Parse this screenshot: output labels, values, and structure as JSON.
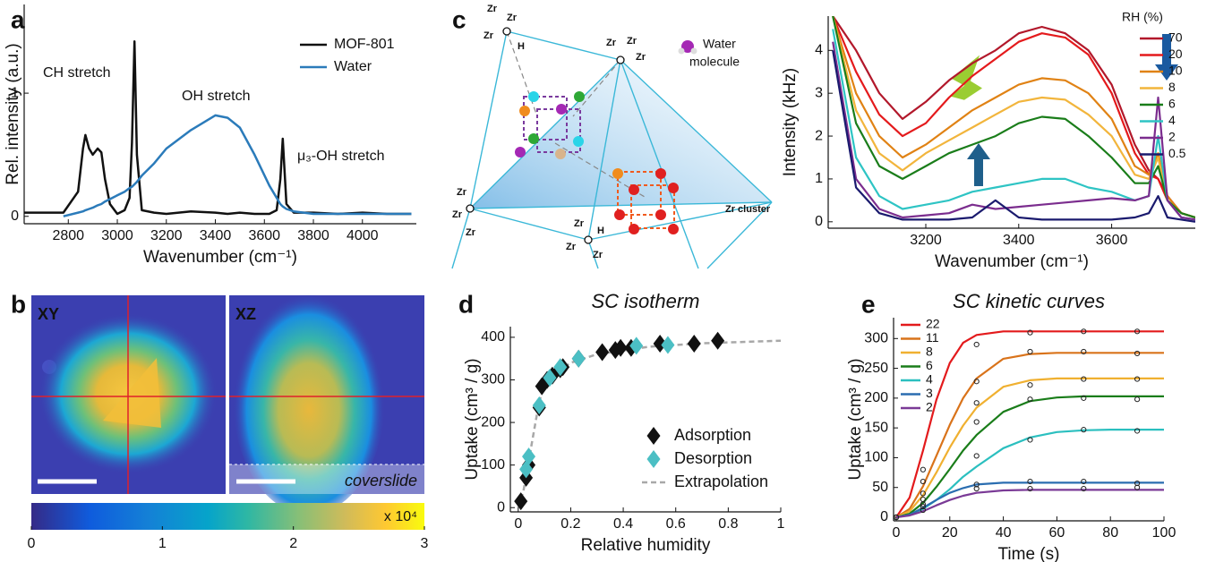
{
  "panel_labels": [
    "a",
    "b",
    "c",
    "d",
    "e"
  ],
  "diagram": {
    "zr_labels": [
      "Zr",
      "Zr",
      "Zr",
      "H",
      "Zr",
      "Zr",
      "Zr",
      "Zr",
      "Zr",
      "Zr",
      "Zr",
      "Zr",
      "Zr",
      "H"
    ],
    "water_label": [
      "Water",
      "molecule"
    ],
    "cluster_label": "Zr cluster"
  },
  "chart_data": [
    {
      "type": "line",
      "x": [
        2620,
        2700,
        2780,
        2840,
        2860,
        2870,
        2885,
        2900,
        2920,
        2935,
        2950,
        2970,
        3000,
        3030,
        3050,
        3060,
        3070,
        3080,
        3100,
        3150,
        3200,
        3300,
        3400,
        3450,
        3500,
        3560,
        3620,
        3650,
        3665,
        3675,
        3690,
        3720,
        3800,
        3900,
        4000,
        4100,
        4200
      ],
      "series": [
        {
          "name": "MOF-801",
          "color": "#111111",
          "values": [
            0.03,
            0.03,
            0.03,
            0.2,
            0.55,
            0.66,
            0.55,
            0.5,
            0.55,
            0.52,
            0.3,
            0.1,
            0.02,
            0.05,
            0.15,
            0.6,
            1.42,
            0.5,
            0.05,
            0.03,
            0.02,
            0.04,
            0.03,
            0.02,
            0.03,
            0.02,
            0.02,
            0.05,
            0.3,
            0.63,
            0.1,
            0.03,
            0.03,
            0.02,
            0.03,
            0.02,
            0.02
          ]
        },
        {
          "name": "Water",
          "color": "#2b7bba",
          "values": [
            null,
            null,
            0.0,
            0.03,
            0.04,
            0.05,
            0.06,
            0.07,
            0.09,
            0.1,
            0.12,
            0.14,
            0.17,
            0.2,
            0.23,
            0.24,
            0.26,
            0.28,
            0.33,
            0.43,
            0.55,
            0.7,
            0.82,
            0.8,
            0.72,
            0.5,
            0.25,
            0.15,
            0.1,
            0.08,
            0.06,
            0.04,
            0.02,
            0.02,
            0.02,
            0.02,
            0.02
          ]
        }
      ],
      "xlim": [
        2620,
        4220
      ],
      "ylim": [
        -0.06,
        1.72
      ],
      "xticks": [
        2800,
        3000,
        3200,
        3400,
        3600,
        3800,
        4000
      ],
      "yticks": [
        0,
        1
      ],
      "xlabel": "Wavenumber (cm⁻¹)",
      "ylabel": "Rel. intensity (a.u.)",
      "annotations": [
        "CH stretch",
        "OH stretch",
        "μ₃-OH stretch"
      ],
      "legend": "upper right"
    },
    {
      "type": "heatmap",
      "panels": [
        "XY",
        "XZ"
      ],
      "annotation": "coverslide",
      "colorbar_label": "x 10⁴",
      "clim": [
        0,
        3
      ],
      "cticks": [
        0,
        1,
        2,
        3
      ]
    },
    {
      "type": "line",
      "x": [
        3000,
        3050,
        3100,
        3150,
        3200,
        3250,
        3300,
        3350,
        3400,
        3450,
        3500,
        3550,
        3600,
        3650,
        3680,
        3700,
        3720,
        3750,
        3780
      ],
      "legend_title": "RH (%)",
      "series": [
        {
          "name": "70",
          "color": "#b2182b",
          "values": [
            4.8,
            4.0,
            3.0,
            2.4,
            2.8,
            3.3,
            3.7,
            4.0,
            4.4,
            4.55,
            4.4,
            4.0,
            3.2,
            1.8,
            1.2,
            1.0,
            0.6,
            0.2,
            0.1
          ]
        },
        {
          "name": "20",
          "color": "#e41a1c",
          "values": [
            4.8,
            3.5,
            2.5,
            2.0,
            2.3,
            2.9,
            3.4,
            3.8,
            4.2,
            4.4,
            4.3,
            3.9,
            3.0,
            1.6,
            1.1,
            1.0,
            0.5,
            0.2,
            0.1
          ]
        },
        {
          "name": "10",
          "color": "#e08214",
          "values": [
            4.8,
            3.0,
            2.0,
            1.5,
            1.8,
            2.2,
            2.6,
            2.9,
            3.2,
            3.35,
            3.3,
            3.0,
            2.4,
            1.3,
            1.1,
            1.6,
            0.6,
            0.2,
            0.1
          ]
        },
        {
          "name": "8",
          "color": "#f2b53c",
          "values": [
            4.8,
            2.6,
            1.6,
            1.2,
            1.6,
            1.9,
            2.2,
            2.5,
            2.8,
            2.9,
            2.85,
            2.5,
            2.0,
            1.1,
            1.0,
            1.5,
            0.5,
            0.2,
            0.1
          ]
        },
        {
          "name": "6",
          "color": "#1a7d1a",
          "values": [
            4.8,
            2.3,
            1.3,
            1.0,
            1.3,
            1.6,
            1.8,
            2.0,
            2.3,
            2.45,
            2.4,
            2.0,
            1.5,
            0.9,
            0.9,
            1.3,
            0.5,
            0.2,
            0.1
          ]
        },
        {
          "name": "4",
          "color": "#2ec4c4",
          "values": [
            4.5,
            1.5,
            0.6,
            0.3,
            0.4,
            0.5,
            0.7,
            0.8,
            0.9,
            1.0,
            1.0,
            0.8,
            0.7,
            0.5,
            0.6,
            2.0,
            0.5,
            0.1,
            0.05
          ]
        },
        {
          "name": "2",
          "color": "#7b2d8e",
          "values": [
            4.2,
            1.0,
            0.3,
            0.1,
            0.15,
            0.2,
            0.4,
            0.3,
            0.35,
            0.4,
            0.45,
            0.5,
            0.55,
            0.5,
            0.6,
            2.9,
            0.5,
            0.1,
            0.05
          ]
        },
        {
          "name": "0.5",
          "color": "#1a1a6e",
          "values": [
            4.0,
            0.8,
            0.2,
            0.05,
            0.05,
            0.05,
            0.1,
            0.5,
            0.1,
            0.05,
            0.05,
            0.05,
            0.05,
            0.1,
            0.2,
            0.6,
            0.1,
            0.05,
            0.0
          ]
        }
      ],
      "xlim": [
        2990,
        3780
      ],
      "ylim": [
        -0.15,
        4.8
      ],
      "xticks": [
        3200,
        3400,
        3600
      ],
      "yticks": [
        0,
        1,
        2,
        3,
        4
      ],
      "xlabel": "Wavenumber (cm⁻¹)",
      "ylabel": "Intensity (kHz)",
      "legend": "upper right"
    },
    {
      "type": "scatter",
      "title": "SC isotherm",
      "series": [
        {
          "name": "Adsorption",
          "color": "#111111",
          "marker": "diamond",
          "x": [
            0.01,
            0.03,
            0.04,
            0.08,
            0.09,
            0.11,
            0.13,
            0.16,
            0.17,
            0.23,
            0.32,
            0.37,
            0.39,
            0.43,
            0.54,
            0.67,
            0.76
          ],
          "values": [
            15,
            70,
            100,
            235,
            285,
            300,
            310,
            325,
            330,
            350,
            365,
            370,
            375,
            375,
            385,
            385,
            392
          ]
        },
        {
          "name": "Desorption",
          "color": "#4bbfc4",
          "marker": "diamond",
          "x": [
            0.03,
            0.04,
            0.08,
            0.12,
            0.16,
            0.23,
            0.45,
            0.57
          ],
          "values": [
            90,
            120,
            240,
            305,
            330,
            350,
            380,
            382
          ]
        },
        {
          "name": "Extrapolation",
          "color": "#a8a8a8",
          "marker": "dashed",
          "x": [
            0,
            0.02,
            0.04,
            0.06,
            0.08,
            0.1,
            0.15,
            0.2,
            0.3,
            0.5,
            0.7,
            1.0
          ],
          "values": [
            0,
            40,
            110,
            180,
            250,
            285,
            320,
            340,
            360,
            378,
            386,
            392
          ]
        }
      ],
      "xlim": [
        -0.03,
        1.0
      ],
      "ylim": [
        -10,
        425
      ],
      "xticks": [
        0,
        0.2,
        0.4,
        0.6,
        0.8,
        1
      ],
      "yticks": [
        0,
        100,
        200,
        300,
        400
      ],
      "xlabel": "Relative humidity",
      "ylabel": "Uptake (cm³ / g)",
      "legend": "lower right"
    },
    {
      "type": "line",
      "title": "SC kinetic curves",
      "x": [
        0,
        5,
        10,
        15,
        20,
        25,
        30,
        40,
        50,
        60,
        70,
        80,
        90,
        100
      ],
      "marker_x": [
        0,
        10,
        30,
        50,
        70,
        90
      ],
      "series": [
        {
          "name": "22",
          "color": "#e31a1c",
          "values": [
            0,
            33,
            112,
            197,
            259,
            293,
            306,
            312,
            312,
            312,
            312,
            312,
            312,
            312
          ],
          "marker_values": [
            0,
            80,
            290,
            310,
            312,
            312
          ]
        },
        {
          "name": "11",
          "color": "#d9731a",
          "values": [
            0,
            14,
            52,
            103,
            155,
            200,
            233,
            266,
            274,
            276,
            276,
            276,
            276,
            276
          ],
          "marker_values": [
            0,
            60,
            228,
            278,
            278,
            275
          ]
        },
        {
          "name": "8",
          "color": "#f0b030",
          "values": [
            0,
            10,
            37,
            75,
            117,
            154,
            184,
            219,
            230,
            233,
            233,
            233,
            233,
            233
          ],
          "marker_values": [
            0,
            40,
            192,
            222,
            232,
            232
          ]
        },
        {
          "name": "6",
          "color": "#1a7d1a",
          "values": [
            0,
            6,
            24,
            51,
            81,
            112,
            138,
            177,
            195,
            201,
            203,
            203,
            203,
            203
          ],
          "marker_values": [
            0,
            30,
            160,
            198,
            200,
            198
          ]
        },
        {
          "name": "4",
          "color": "#2bbfbf",
          "values": [
            0,
            4,
            14,
            29,
            47,
            68,
            85,
            116,
            134,
            143,
            146,
            147,
            147,
            147
          ],
          "marker_values": [
            0,
            22,
            103,
            130,
            147,
            145
          ]
        },
        {
          "name": "3",
          "color": "#2a6db0",
          "values": [
            0,
            4,
            16,
            29,
            41,
            49,
            55,
            58,
            58,
            58,
            58,
            58,
            58,
            58
          ],
          "marker_values": [
            0,
            18,
            55,
            60,
            60,
            57
          ]
        },
        {
          "name": "2",
          "color": "#7a3a96",
          "values": [
            0,
            3,
            10,
            20,
            29,
            36,
            41,
            45,
            46,
            46,
            46,
            46,
            46,
            46
          ],
          "marker_values": [
            0,
            12,
            48,
            48,
            48,
            50
          ]
        }
      ],
      "xlim": [
        -1,
        100
      ],
      "ylim": [
        -6,
        335
      ],
      "xticks": [
        0,
        20,
        40,
        60,
        80,
        100
      ],
      "yticks": [
        0,
        50,
        100,
        150,
        200,
        250,
        300
      ],
      "xlabel": "Time (s)",
      "ylabel": "Uptake (cm³ / g)",
      "legend": "upper left"
    }
  ]
}
